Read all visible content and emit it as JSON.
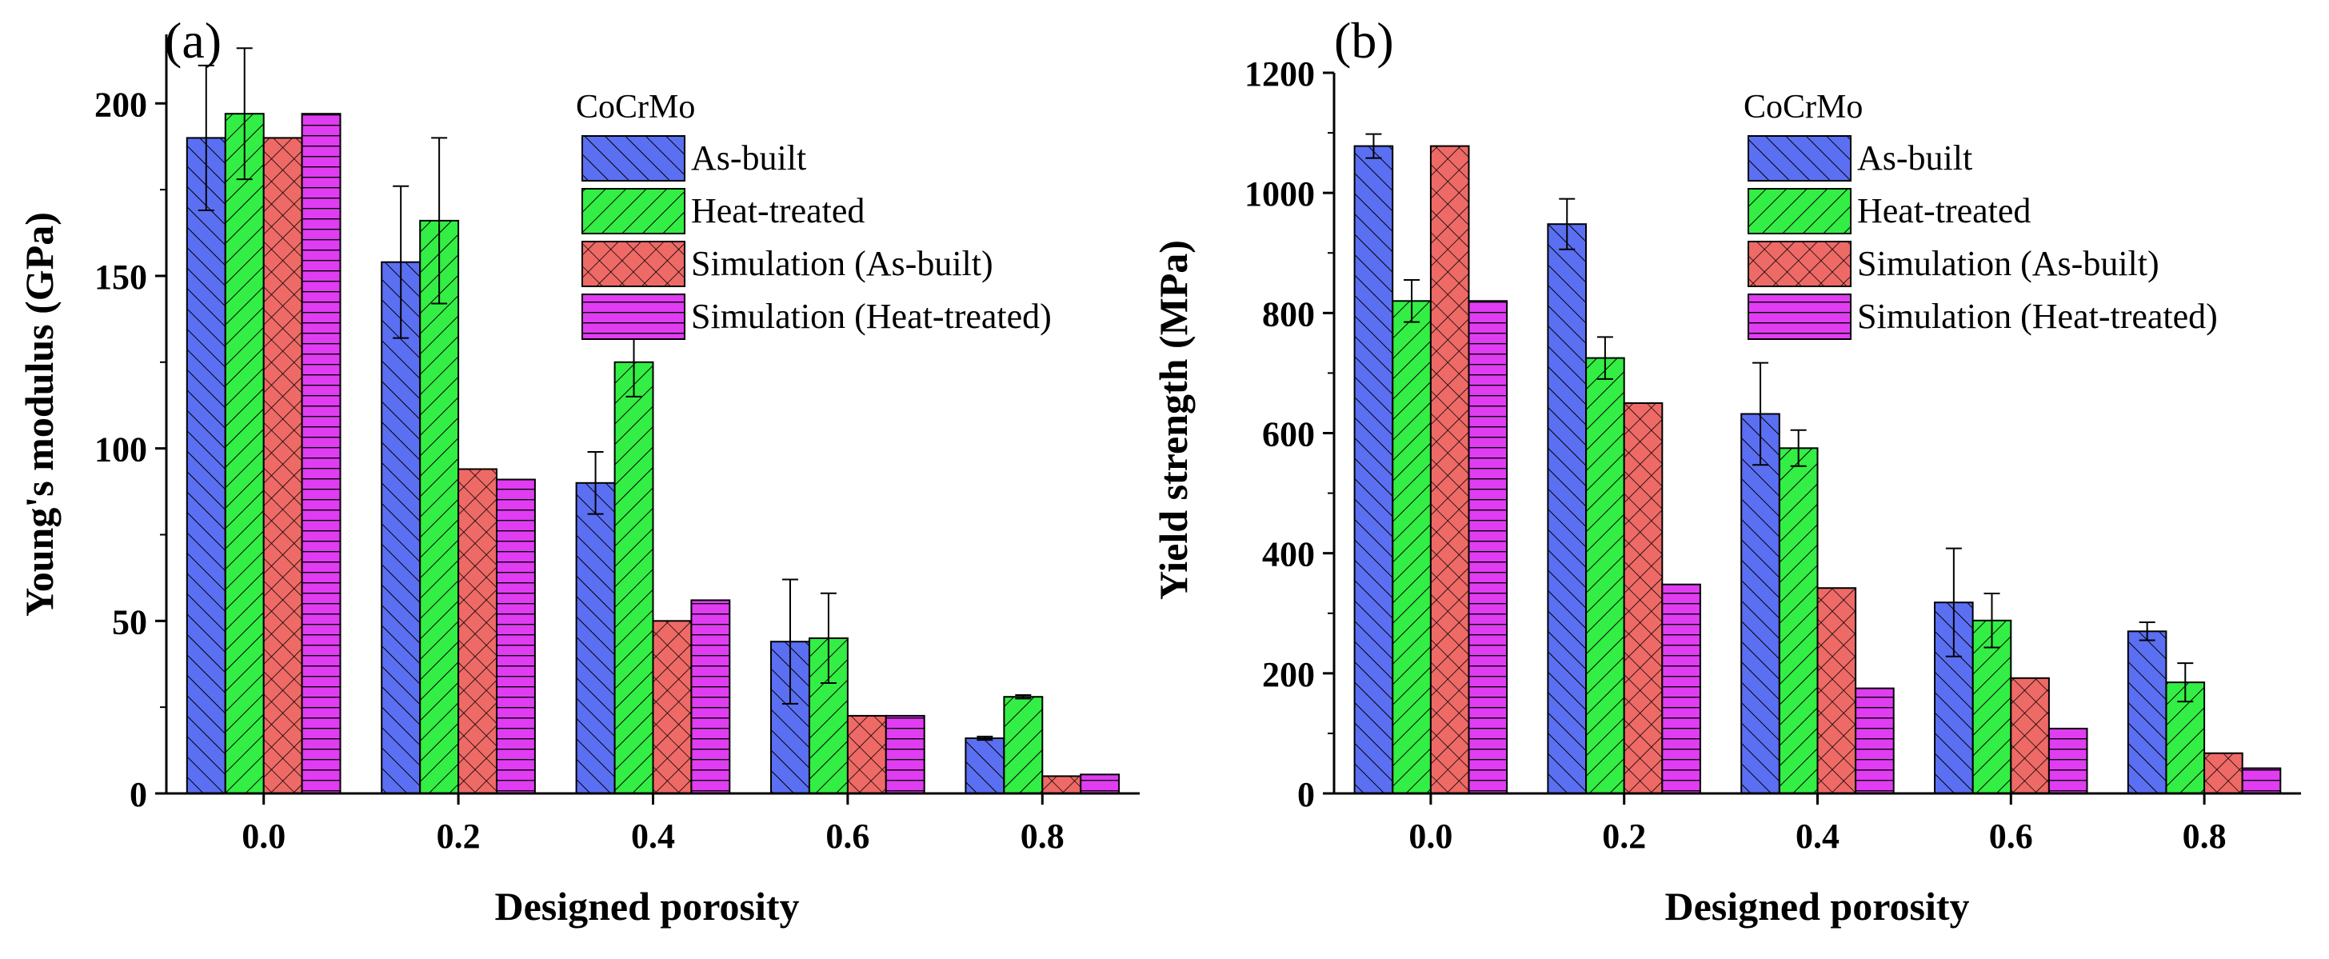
{
  "chart_data": [
    {
      "panel_label": "(a)",
      "type": "bar",
      "xlabel": "Designed porosity",
      "ylabel": "Young's modulus (GPa)",
      "ylim": [
        0,
        220
      ],
      "yticks": [
        0,
        50,
        100,
        150,
        200
      ],
      "categories": [
        "0.0",
        "0.2",
        "0.4",
        "0.6",
        "0.8"
      ],
      "legend_title": "CoCrMo",
      "legend_position": "top-right",
      "series": [
        {
          "name": "As-built",
          "values": [
            190,
            154,
            90,
            44,
            16
          ],
          "errors": [
            21,
            22,
            9,
            18,
            0.5
          ]
        },
        {
          "name": "Heat-treated",
          "values": [
            197,
            166,
            125,
            45,
            28
          ],
          "errors": [
            19,
            24,
            10,
            13,
            0.5
          ]
        },
        {
          "name": "Simulation (As-built)",
          "values": [
            190,
            94,
            50,
            22.5,
            5
          ]
        },
        {
          "name": "Simulation (Heat-treated)",
          "values": [
            197,
            91,
            56,
            22.5,
            5.5
          ]
        }
      ]
    },
    {
      "panel_label": "(b)",
      "type": "bar",
      "xlabel": "Designed porosity",
      "ylabel": "Yield strength (MPa)",
      "ylim": [
        0,
        1200
      ],
      "yticks": [
        0,
        200,
        400,
        600,
        800,
        1000,
        1200
      ],
      "categories": [
        "0.0",
        "0.2",
        "0.4",
        "0.6",
        "0.8"
      ],
      "legend_title": "CoCrMo",
      "legend_position": "top-right",
      "series": [
        {
          "name": "As-built",
          "values": [
            1078,
            948,
            632,
            318,
            270
          ],
          "errors": [
            20,
            42,
            85,
            90,
            15
          ]
        },
        {
          "name": "Heat-treated",
          "values": [
            820,
            725,
            575,
            288,
            185
          ],
          "errors": [
            35,
            35,
            30,
            45,
            32
          ]
        },
        {
          "name": "Simulation (As-built)",
          "values": [
            1078,
            650,
            342,
            192,
            67
          ]
        },
        {
          "name": "Simulation (Heat-treated)",
          "values": [
            820,
            348,
            175,
            108,
            42
          ]
        }
      ]
    }
  ],
  "colors": {
    "series_fills": [
      "#5b6ff2",
      "#33ee44",
      "#ee6a66",
      "#e03df2"
    ],
    "hatch_line": "#000000",
    "axis": "#000000"
  }
}
